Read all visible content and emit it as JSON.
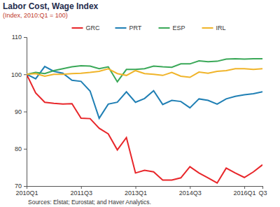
{
  "chart_data": {
    "type": "line",
    "title": "Labor Cost, Wage Index",
    "subtitle": "(Index, 2010:Q1  = 100)",
    "source": "Sources: Elstat; Eurostat; and Haver Analytics.",
    "categories": [
      "2010Q1",
      null,
      null,
      null,
      null,
      null,
      "2011Q3",
      null,
      null,
      null,
      null,
      null,
      "2013Q1",
      null,
      null,
      null,
      null,
      null,
      "2014Q3",
      null,
      null,
      null,
      null,
      null,
      "2016Q1",
      null,
      "Q3"
    ],
    "series": [
      {
        "name": "GRC",
        "color": "#e8262a",
        "values": [
          100,
          95,
          92.5,
          92.2,
          92,
          92.1,
          88.2,
          88.1,
          85.5,
          84,
          79.7,
          83,
          73.5,
          74.2,
          73.8,
          71.6,
          71.6,
          72.2,
          75.2,
          73.5,
          72.2,
          70.8,
          74.8,
          73.5,
          72.3,
          73.8,
          75.7
        ]
      },
      {
        "name": "PRT",
        "color": "#1f7fb4",
        "values": [
          100,
          98.8,
          102.1,
          100.8,
          100.3,
          98.4,
          98.1,
          95.5,
          88.2,
          92,
          92.5,
          95.3,
          92.5,
          93.5,
          95.6,
          91.9,
          93,
          92.7,
          91,
          93.4,
          93,
          92,
          93.4,
          94.1,
          94.5,
          94.8,
          95.3
        ]
      },
      {
        "name": "ESP",
        "color": "#3aa858",
        "values": [
          100,
          100.5,
          100.2,
          101,
          101.5,
          102,
          102.3,
          102.2,
          101.5,
          102,
          98,
          101.3,
          101.3,
          101.5,
          102.2,
          102,
          101.9,
          102.8,
          102.8,
          103.6,
          103.4,
          103.5,
          104.1,
          104.2,
          104.1,
          104.2,
          104.2
        ]
      },
      {
        "name": "IRL",
        "color": "#f0b429",
        "values": [
          100,
          100.2,
          99.5,
          100,
          100,
          100.2,
          100.3,
          100.5,
          100.8,
          101.5,
          100.2,
          99.7,
          101,
          100.2,
          100,
          99.7,
          100.5,
          99.5,
          99.2,
          100.6,
          100.3,
          100.8,
          101,
          101.5,
          101.5,
          101.3,
          101.5
        ]
      }
    ],
    "ylim": [
      70,
      110
    ],
    "yticks": [
      70,
      80,
      90,
      100,
      110
    ],
    "grid": false,
    "legend": "top"
  }
}
